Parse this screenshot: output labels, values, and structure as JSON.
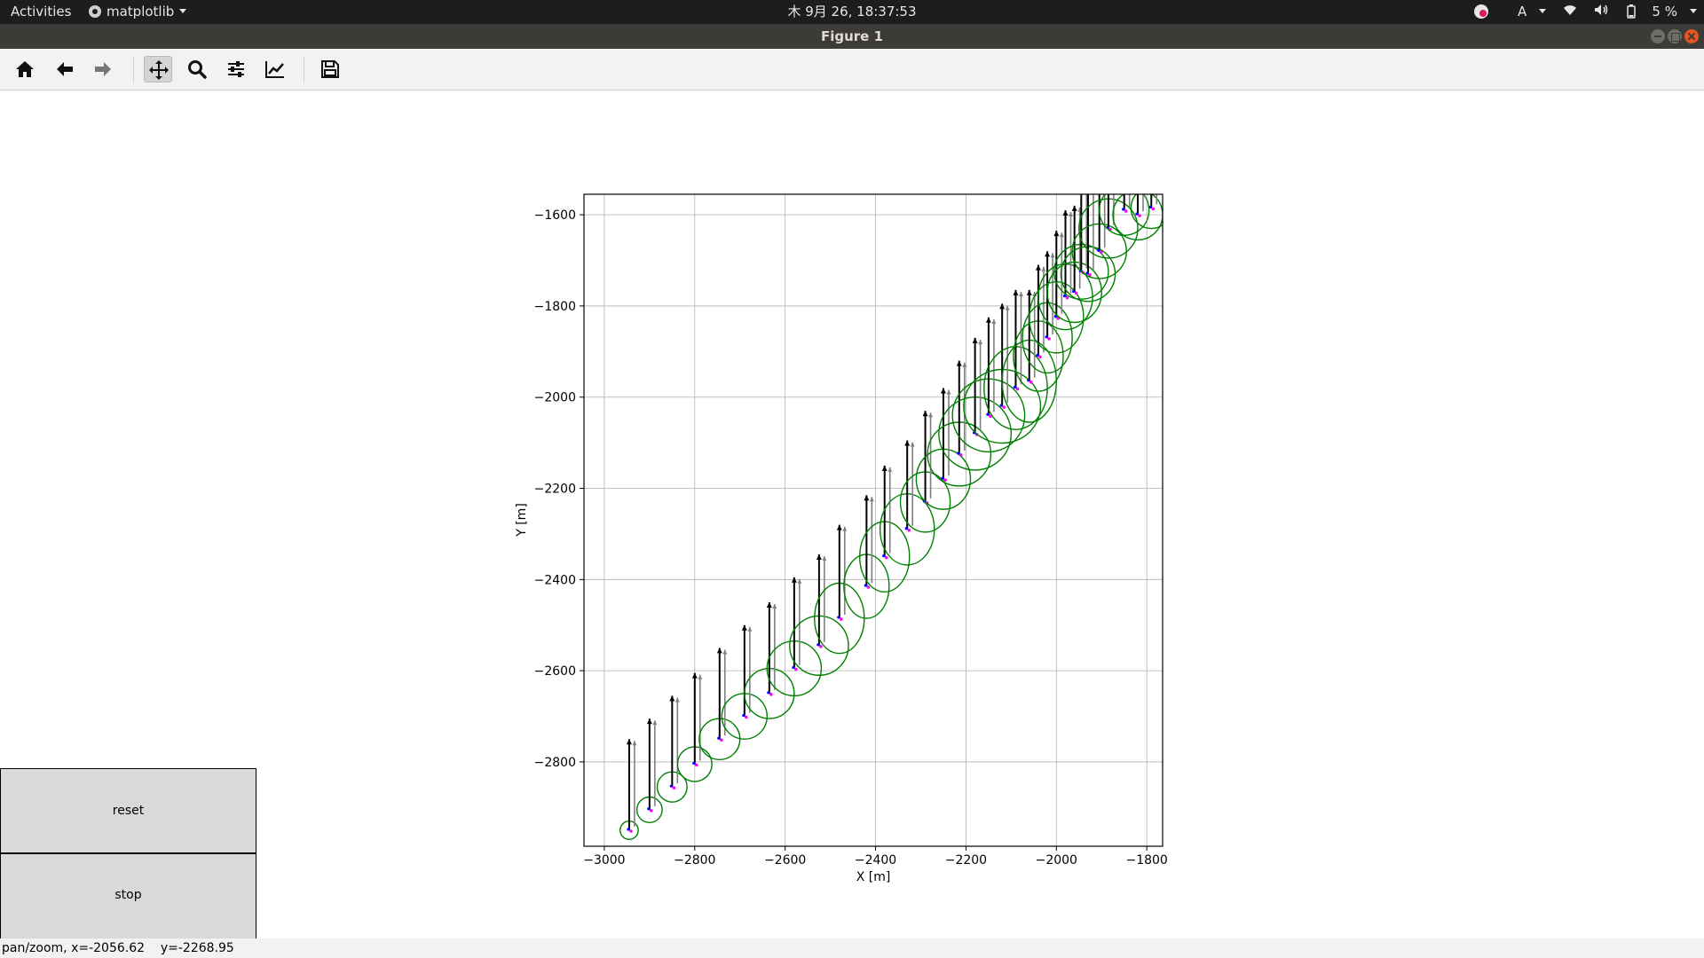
{
  "topbar": {
    "activities": "Activities",
    "app_menu": "matplotlib",
    "clock": "木 9月 26, 18:37:53",
    "keyboard": "A",
    "battery": "5 %"
  },
  "window": {
    "title": "Figure 1"
  },
  "toolbar": {
    "buttons": [
      {
        "name": "home",
        "icon": "home-icon"
      },
      {
        "name": "back",
        "icon": "arrow-left-icon"
      },
      {
        "name": "forward",
        "icon": "arrow-right-icon"
      },
      {
        "name": "pan",
        "icon": "move-icon",
        "active": true
      },
      {
        "name": "zoom",
        "icon": "search-icon"
      },
      {
        "name": "subplots",
        "icon": "sliders-icon"
      },
      {
        "name": "customize",
        "icon": "line-chart-icon"
      },
      {
        "name": "save",
        "icon": "floppy-disk-icon"
      }
    ]
  },
  "chart_data": {
    "type": "scatter",
    "xlabel": "X [m]",
    "ylabel": "Y [m]",
    "xlim": [
      -3045,
      -1765
    ],
    "ylim": [
      -2985,
      -1555
    ],
    "xticks": [
      -3000,
      -2800,
      -2600,
      -2400,
      -2200,
      -2000,
      -1800
    ],
    "yticks": [
      -1600,
      -1800,
      -2000,
      -2200,
      -2400,
      -2600,
      -2800
    ],
    "grid": true,
    "colors": {
      "circle": "#008000",
      "arrow": "#000000",
      "arrow_secondary": "#808080",
      "point_a": "#ff00ff",
      "point_b": "#0000ff"
    },
    "trajectory": {
      "x": [
        -2945,
        -2900,
        -2850,
        -2800,
        -2745,
        -2690,
        -2635,
        -2580,
        -2525,
        -2480,
        -2420,
        -2380,
        -2330,
        -2290,
        -2250,
        -2215,
        -2180,
        -2150,
        -2120,
        -2090,
        -2060,
        -2040,
        -2020,
        -2000,
        -1980,
        -1960,
        -1945,
        -1930,
        -1905,
        -1885,
        -1850,
        -1820,
        -1790
      ],
      "y": [
        -2950,
        -2905,
        -2855,
        -2805,
        -2750,
        -2700,
        -2650,
        -2595,
        -2545,
        -2485,
        -2415,
        -2350,
        -2290,
        -2230,
        -2180,
        -2125,
        -2080,
        -2040,
        -2020,
        -1980,
        -1965,
        -1910,
        -1870,
        -1825,
        -1780,
        -1770,
        -1725,
        -1730,
        -1680,
        -1630,
        -1590,
        -1600,
        -1585
      ],
      "circle_radius": [
        20,
        28,
        33,
        38,
        45,
        50,
        55,
        60,
        65,
        55,
        50,
        55,
        60,
        55,
        60,
        70,
        80,
        80,
        85,
        70,
        60,
        55,
        55,
        60,
        60,
        60,
        60,
        60,
        60,
        65,
        55,
        55,
        45
      ],
      "circle_aspect": [
        1,
        1,
        1,
        1,
        1,
        1,
        1,
        1,
        1,
        1.4,
        1.4,
        1.4,
        1.3,
        1.2,
        1.1,
        1.0,
        1.0,
        1.0,
        0.95,
        1.3,
        1.5,
        1.4,
        1.4,
        1.3,
        1.2,
        1.1,
        1.0,
        1.0,
        1.0,
        1.0,
        1.0,
        1.0,
        1.0
      ],
      "arrow_length": [
        200,
        200,
        200,
        200,
        200,
        200,
        200,
        200,
        200,
        205,
        200,
        200,
        195,
        200,
        200,
        205,
        210,
        215,
        225,
        215,
        200,
        200,
        190,
        190,
        190,
        190,
        190,
        190,
        190,
        190,
        190,
        190,
        190
      ]
    }
  },
  "buttons": {
    "reset": "reset",
    "stop": "stop"
  },
  "status": {
    "mode": "pan/zoom, x=-2056.62",
    "y": "y=-2268.95"
  }
}
